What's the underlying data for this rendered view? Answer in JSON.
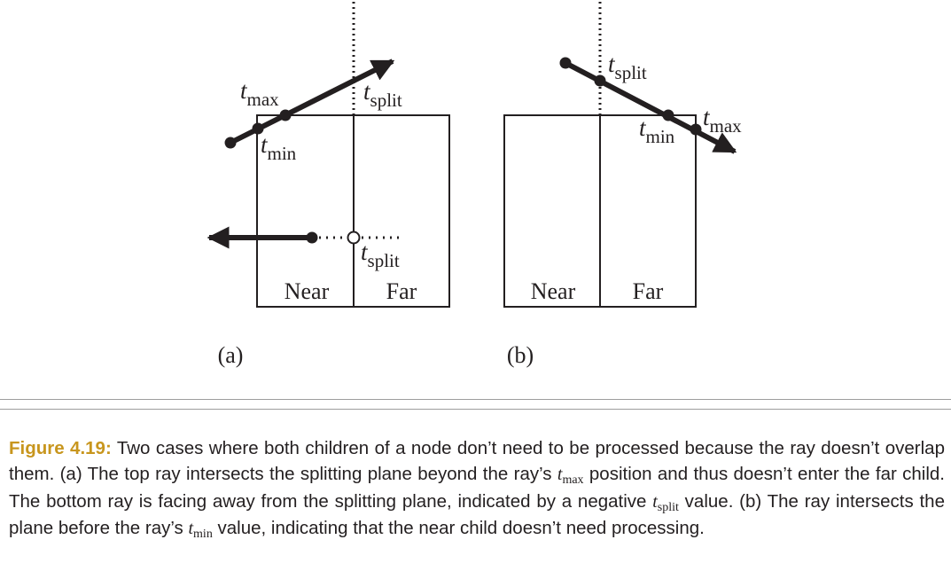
{
  "panel_a": {
    "label": "(a)",
    "near_label": "Near",
    "far_label": "Far",
    "t_max": {
      "t": "t",
      "sub": "max"
    },
    "t_min": {
      "t": "t",
      "sub": "min"
    },
    "t_split_top": {
      "t": "t",
      "sub": "split"
    },
    "t_split_bottom": {
      "t": "t",
      "sub": "split"
    }
  },
  "panel_b": {
    "label": "(b)",
    "near_label": "Near",
    "far_label": "Far",
    "t_split": {
      "t": "t",
      "sub": "split"
    },
    "t_min": {
      "t": "t",
      "sub": "min"
    },
    "t_max": {
      "t": "t",
      "sub": "max"
    }
  },
  "caption": {
    "figure_label": "Figure 4.19:",
    "part1": " Two cases where both children of a node don’t need to be processed because the ray doesn’t overlap them. (a) The top ray intersects the splitting plane beyond the ray’s ",
    "tmax_t": "t",
    "tmax_sub": "max",
    "part2": " position and thus doesn’t enter the far child. The bottom ray is facing away from the splitting plane, indicated by a negative ",
    "tsplit_t": "t",
    "tsplit_sub": "split",
    "part3": " value. (b) The ray intersects the plane before the ray’s ",
    "tmin_t": "t",
    "tmin_sub": "min",
    "part4": " value, indicating that the near child doesn’t need processing."
  },
  "colors": {
    "ink": "#231f20",
    "accent": "#c8961e",
    "rule": "#9d9d9d"
  }
}
